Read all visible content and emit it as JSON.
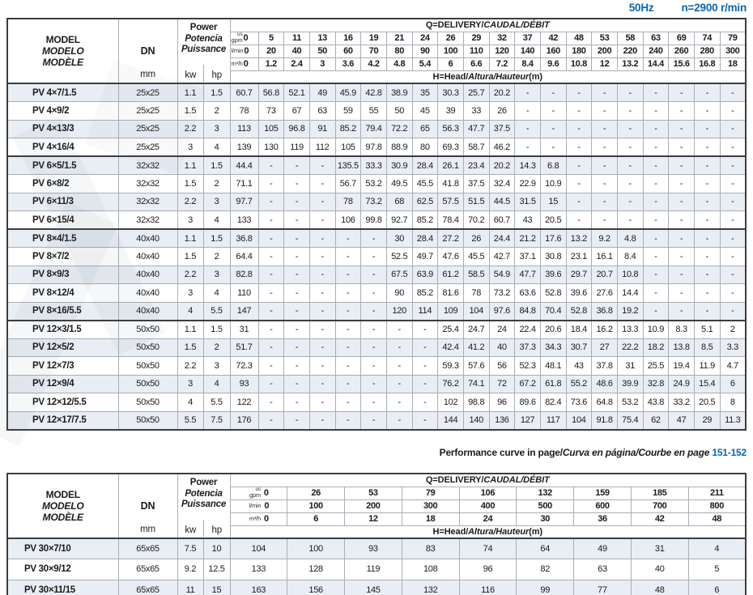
{
  "header": {
    "frequency": "50Hz",
    "speed": "n=2900 r/min"
  },
  "labels": {
    "model_en": "MODEL",
    "model_es": "MODELO",
    "model_fr": "MODÈLE",
    "dn": "DN",
    "mm": "mm",
    "power_en": "Power",
    "power_es": "Potencia",
    "power_fr": "Puissance",
    "kw": "kw",
    "hp": "hp",
    "q_en": "Q=DELIVERY/",
    "q_intl": "CAUDAL/DÉBIT",
    "h_en": "H=Head/",
    "h_intl": "Altura/Hauteur",
    "h_unit": "(m)",
    "units": [
      {
        "top": "us",
        "text": "gpm"
      },
      {
        "text": "l/min"
      },
      {
        "text": "m³/h"
      }
    ]
  },
  "footer": {
    "text_en": "Performance curve in page/",
    "text_intl": "Curva en página/Courbe en page",
    "pages": "151-152"
  },
  "colors": {
    "accent": "#0d65ad",
    "row_alt": "#e9edf4",
    "border_dark": "#3a3d42",
    "border_light": "#a9aeb6"
  },
  "table1": {
    "flow_usgpm": [
      "0",
      "5",
      "11",
      "13",
      "16",
      "19",
      "21",
      "24",
      "26",
      "29",
      "32",
      "37",
      "42",
      "48",
      "53",
      "58",
      "63",
      "69",
      "74",
      "79"
    ],
    "flow_lmin": [
      "0",
      "20",
      "40",
      "50",
      "60",
      "70",
      "80",
      "90",
      "100",
      "110",
      "120",
      "140",
      "160",
      "180",
      "200",
      "220",
      "240",
      "260",
      "280",
      "300"
    ],
    "flow_m3h": [
      "0",
      "1.2",
      "2.4",
      "3",
      "3.6",
      "4.2",
      "4.8",
      "5.4",
      "6",
      "6.6",
      "7.2",
      "8.4",
      "9.6",
      "10.8",
      "12",
      "13.2",
      "14.4",
      "15.6",
      "16.8",
      "18"
    ],
    "rows": [
      {
        "model": "PV 4×7/1.5",
        "dn": "25x25",
        "kw": "1.1",
        "hp": "1.5",
        "heads": [
          "60.7",
          "56.8",
          "52.1",
          "49",
          "45.9",
          "42.8",
          "38.9",
          "35",
          "30.3",
          "25.7",
          "20.2",
          "-",
          "-",
          "-",
          "-",
          "-",
          "-",
          "-",
          "-",
          "-"
        ]
      },
      {
        "model": "PV 4×9/2",
        "dn": "25x25",
        "kw": "1.5",
        "hp": "2",
        "heads": [
          "78",
          "73",
          "67",
          "63",
          "59",
          "55",
          "50",
          "45",
          "39",
          "33",
          "26",
          "-",
          "-",
          "-",
          "-",
          "-",
          "-",
          "-",
          "-",
          "-"
        ]
      },
      {
        "model": "PV 4×13/3",
        "dn": "25x25",
        "kw": "2.2",
        "hp": "3",
        "heads": [
          "113",
          "105",
          "96.8",
          "91",
          "85.2",
          "79.4",
          "72.2",
          "65",
          "56.3",
          "47.7",
          "37.5",
          "-",
          "-",
          "-",
          "-",
          "-",
          "-",
          "-",
          "-",
          "-"
        ]
      },
      {
        "model": "PV 4×16/4",
        "dn": "25x25",
        "kw": "3",
        "hp": "4",
        "heads": [
          "139",
          "130",
          "119",
          "112",
          "105",
          "97.8",
          "88.9",
          "80",
          "69.3",
          "58.7",
          "46.2",
          "-",
          "-",
          "-",
          "-",
          "-",
          "-",
          "-",
          "-",
          "-"
        ]
      },
      {
        "model": "PV 6×5/1.5",
        "dn": "32x32",
        "kw": "1.1",
        "hp": "1.5",
        "heads": [
          "44.4",
          "-",
          "-",
          "-",
          "135.5",
          "33.3",
          "30.9",
          "28.4",
          "26.1",
          "23.4",
          "20.2",
          "14.3",
          "6.8",
          "-",
          "-",
          "-",
          "-",
          "-",
          "-",
          "-"
        ]
      },
      {
        "model": "PV 6×8/2",
        "dn": "32x32",
        "kw": "1.5",
        "hp": "2",
        "heads": [
          "71.1",
          "-",
          "-",
          "-",
          "56.7",
          "53.2",
          "49.5",
          "45.5",
          "41.8",
          "37.5",
          "32.4",
          "22.9",
          "10.9",
          "-",
          "-",
          "-",
          "-",
          "-",
          "-",
          "-"
        ]
      },
      {
        "model": "PV 6×11/3",
        "dn": "32x32",
        "kw": "2.2",
        "hp": "3",
        "heads": [
          "97.7",
          "-",
          "-",
          "-",
          "78",
          "73.2",
          "68",
          "62.5",
          "57.5",
          "51.5",
          "44.5",
          "31.5",
          "15",
          "-",
          "-",
          "-",
          "-",
          "-",
          "-",
          "-"
        ]
      },
      {
        "model": "PV 6×15/4",
        "dn": "32x32",
        "kw": "3",
        "hp": "4",
        "heads": [
          "133",
          "-",
          "-",
          "-",
          "106",
          "99.8",
          "92.7",
          "85.2",
          "78.4",
          "70.2",
          "60.7",
          "43",
          "20.5",
          "-",
          "-",
          "-",
          "-",
          "-",
          "-",
          "-"
        ]
      },
      {
        "model": "PV 8×4/1.5",
        "dn": "40x40",
        "kw": "1.1",
        "hp": "1.5",
        "heads": [
          "36.8",
          "-",
          "-",
          "-",
          "-",
          "-",
          "30",
          "28.4",
          "27.2",
          "26",
          "24.4",
          "21.2",
          "17.6",
          "13.2",
          "9.2",
          "4.8",
          "-",
          "-",
          "-",
          "-"
        ]
      },
      {
        "model": "PV 8×7/2",
        "dn": "40x40",
        "kw": "1.5",
        "hp": "2",
        "heads": [
          "64.4",
          "-",
          "-",
          "-",
          "-",
          "-",
          "52.5",
          "49.7",
          "47.6",
          "45.5",
          "42.7",
          "37.1",
          "30.8",
          "23.1",
          "16.1",
          "8.4",
          "-",
          "-",
          "-",
          "-"
        ]
      },
      {
        "model": "PV 8×9/3",
        "dn": "40x40",
        "kw": "2.2",
        "hp": "3",
        "heads": [
          "82.8",
          "-",
          "-",
          "-",
          "-",
          "-",
          "67.5",
          "63.9",
          "61.2",
          "58.5",
          "54.9",
          "47.7",
          "39.6",
          "29.7",
          "20.7",
          "10.8",
          "-",
          "-",
          "-",
          "-"
        ]
      },
      {
        "model": "PV 8×12/4",
        "dn": "40x40",
        "kw": "3",
        "hp": "4",
        "heads": [
          "110",
          "-",
          "-",
          "-",
          "-",
          "-",
          "90",
          "85.2",
          "81.6",
          "78",
          "73.2",
          "63.6",
          "52.8",
          "39.6",
          "27.6",
          "14.4",
          "-",
          "-",
          "-",
          "-"
        ]
      },
      {
        "model": "PV 8×16/5.5",
        "dn": "40x40",
        "kw": "4",
        "hp": "5.5",
        "heads": [
          "147",
          "-",
          "-",
          "-",
          "-",
          "-",
          "120",
          "114",
          "109",
          "104",
          "97.6",
          "84.8",
          "70.4",
          "52.8",
          "36.8",
          "19.2",
          "-",
          "-",
          "-",
          "-"
        ]
      },
      {
        "model": "PV 12×3/1.5",
        "dn": "50x50",
        "kw": "1.1",
        "hp": "1.5",
        "heads": [
          "31",
          "-",
          "-",
          "-",
          "-",
          "-",
          "-",
          "-",
          "25.4",
          "24.7",
          "24",
          "22.4",
          "20.6",
          "18.4",
          "16.2",
          "13.3",
          "10.9",
          "8.3",
          "5.1",
          "2"
        ]
      },
      {
        "model": "PV 12×5/2",
        "dn": "50x50",
        "kw": "1.5",
        "hp": "2",
        "heads": [
          "51.7",
          "-",
          "-",
          "-",
          "-",
          "-",
          "-",
          "-",
          "42.4",
          "41.2",
          "40",
          "37.3",
          "34.3",
          "30.7",
          "27",
          "22.2",
          "18.2",
          "13.8",
          "8.5",
          "3.3"
        ]
      },
      {
        "model": "PV 12×7/3",
        "dn": "50x50",
        "kw": "2.2",
        "hp": "3",
        "heads": [
          "72.3",
          "-",
          "-",
          "-",
          "-",
          "-",
          "-",
          "-",
          "59.3",
          "57.6",
          "56",
          "52.3",
          "48.1",
          "43",
          "37.8",
          "31",
          "25.5",
          "19.4",
          "11.9",
          "4.7"
        ]
      },
      {
        "model": "PV 12×9/4",
        "dn": "50x50",
        "kw": "3",
        "hp": "4",
        "heads": [
          "93",
          "-",
          "-",
          "-",
          "-",
          "-",
          "-",
          "-",
          "76.2",
          "74.1",
          "72",
          "67.2",
          "61.8",
          "55.2",
          "48.6",
          "39.9",
          "32.8",
          "24.9",
          "15.4",
          "6"
        ]
      },
      {
        "model": "PV 12×12/5.5",
        "dn": "50x50",
        "kw": "4",
        "hp": "5.5",
        "heads": [
          "122",
          "-",
          "-",
          "-",
          "-",
          "-",
          "-",
          "-",
          "102",
          "98.8",
          "96",
          "89.6",
          "82.4",
          "73.6",
          "64.8",
          "53.2",
          "43.8",
          "33.2",
          "20.5",
          "8"
        ]
      },
      {
        "model": "PV 12×17/7.5",
        "dn": "50x50",
        "kw": "5.5",
        "hp": "7.5",
        "heads": [
          "176",
          "-",
          "-",
          "-",
          "-",
          "-",
          "-",
          "-",
          "144",
          "140",
          "136",
          "127",
          "117",
          "104",
          "91.8",
          "75.4",
          "62",
          "47",
          "29",
          "11.3"
        ]
      }
    ]
  },
  "table2": {
    "flow_usgpm": [
      "0",
      "26",
      "53",
      "79",
      "106",
      "132",
      "159",
      "185",
      "211"
    ],
    "flow_lmin": [
      "0",
      "100",
      "200",
      "300",
      "400",
      "500",
      "600",
      "700",
      "800"
    ],
    "flow_m3h": [
      "0",
      "6",
      "12",
      "18",
      "24",
      "30",
      "36",
      "42",
      "48"
    ],
    "rows": [
      {
        "model": "PV 30×7/10",
        "dn": "65x65",
        "kw": "7.5",
        "hp": "10",
        "heads": [
          "104",
          "100",
          "93",
          "83",
          "74",
          "64",
          "49",
          "31",
          "4"
        ]
      },
      {
        "model": "PV 30×9/12",
        "dn": "65x65",
        "kw": "9.2",
        "hp": "12.5",
        "heads": [
          "133",
          "128",
          "119",
          "108",
          "96",
          "82",
          "63",
          "40",
          "5"
        ]
      },
      {
        "model": "PV 30×11/15",
        "dn": "65x65",
        "kw": "11",
        "hp": "15",
        "heads": [
          "163",
          "156",
          "145",
          "132",
          "116",
          "99",
          "77",
          "48",
          "6"
        ]
      }
    ]
  }
}
